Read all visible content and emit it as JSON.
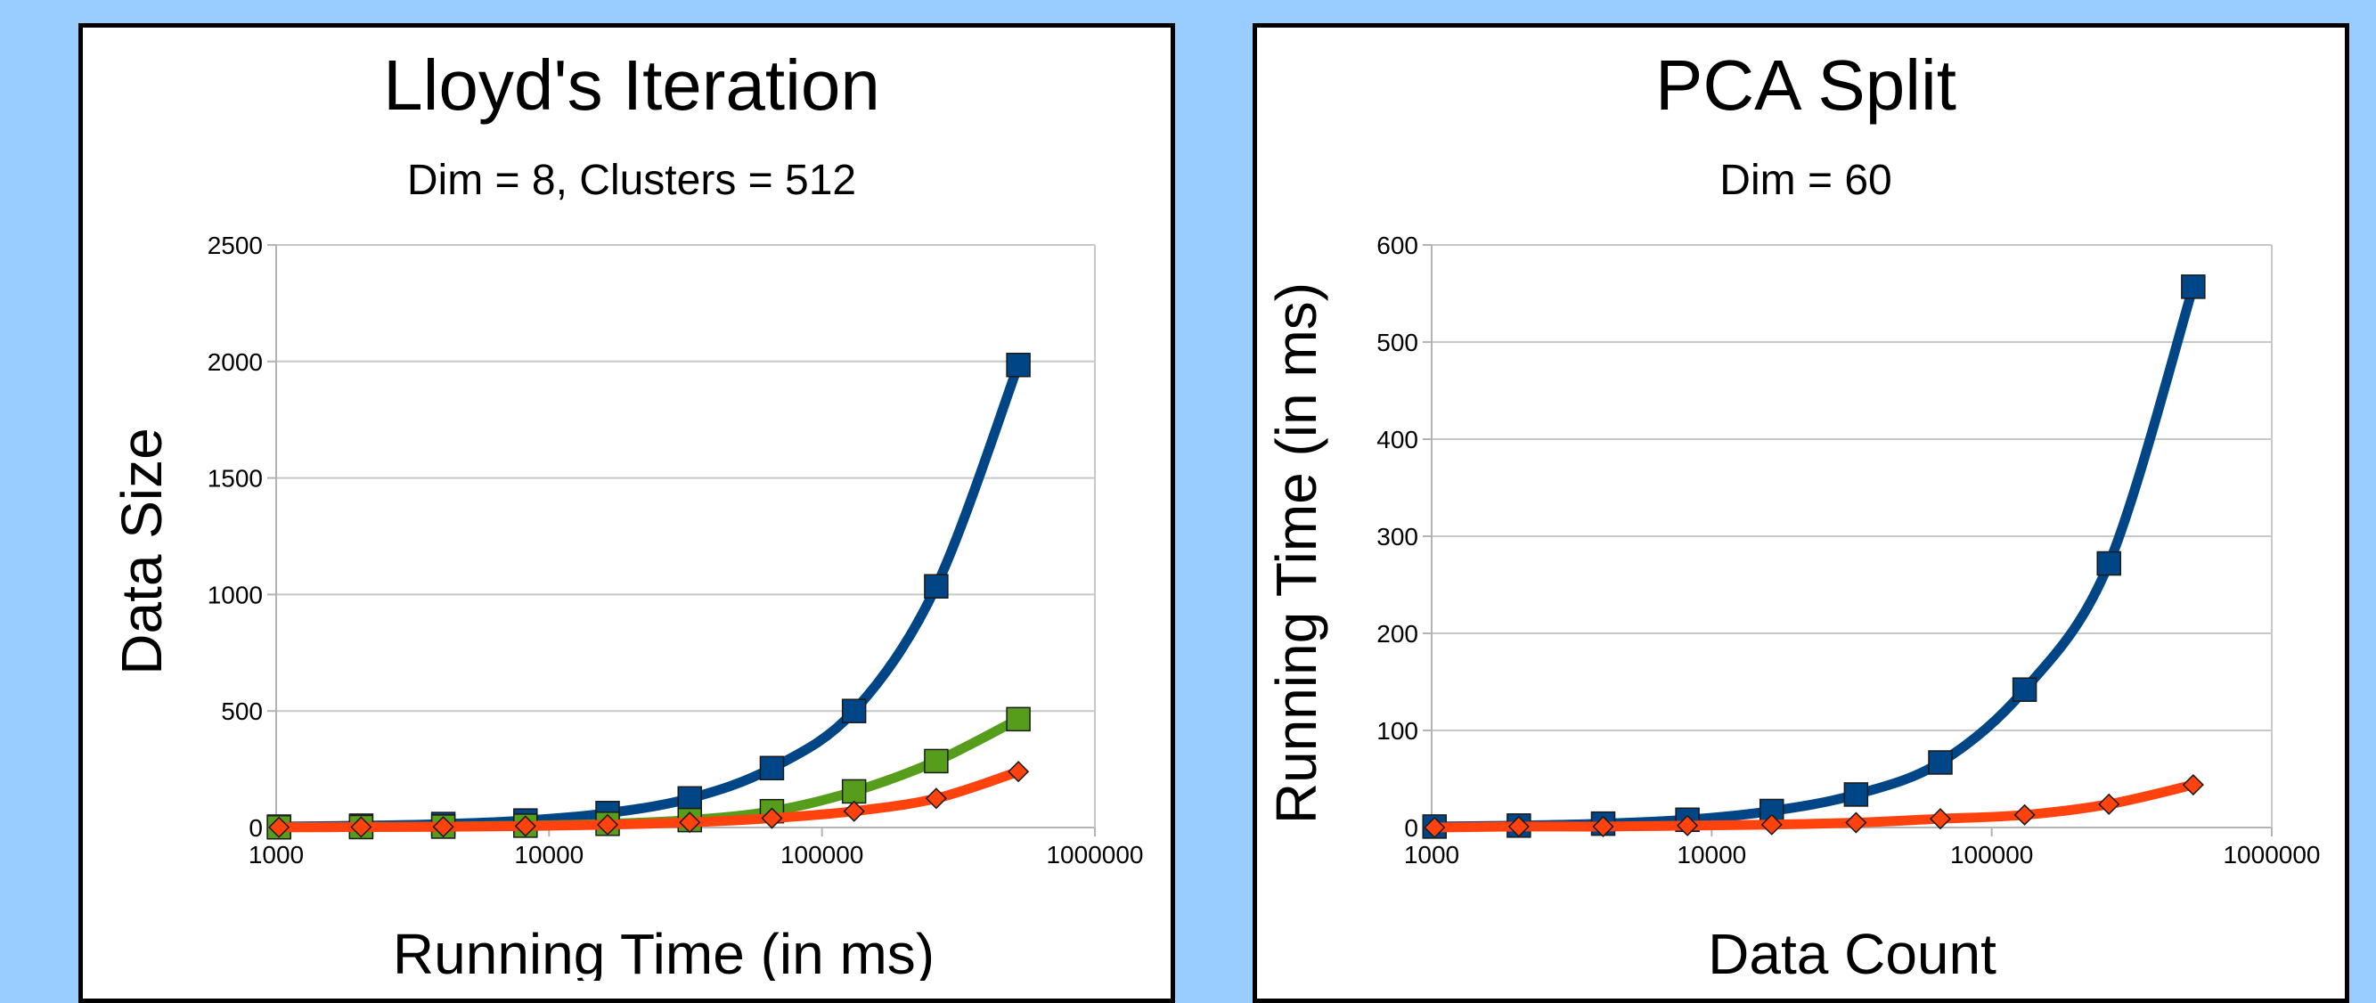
{
  "chart_data": [
    {
      "type": "line",
      "title": "Lloyd's Iteration",
      "subtitle": "Dim = 8, Clusters = 512",
      "xlabel": "Running Time (in ms)",
      "ylabel": "Data Size",
      "xscale": "log",
      "xlim": [
        1000,
        1000000
      ],
      "ylim": [
        0,
        2500
      ],
      "xticks": [
        "1000",
        "10000",
        "100000",
        "1000000"
      ],
      "yticks": [
        "0",
        "500",
        "1000",
        "1500",
        "2000",
        "2500"
      ],
      "grid": true,
      "x": [
        1024,
        2048,
        4096,
        8192,
        16384,
        32768,
        65536,
        131072,
        262144,
        524288
      ],
      "series": [
        {
          "color": "#004586",
          "marker": "square",
          "values": [
            4,
            8,
            15,
            30,
            62,
            125,
            255,
            500,
            1035,
            1985
          ]
        },
        {
          "color": "#579d1c",
          "marker": "square",
          "values": [
            1,
            2,
            4,
            8,
            16,
            32,
            70,
            155,
            285,
            465
          ]
        },
        {
          "color": "#ff420e",
          "marker": "diamond",
          "values": [
            1,
            2,
            3,
            6,
            12,
            22,
            40,
            70,
            125,
            240
          ]
        }
      ]
    },
    {
      "type": "line",
      "title": "PCA Split",
      "subtitle": "Dim = 60",
      "xlabel": "Data Count",
      "ylabel": "Running Time (in ms)",
      "xscale": "log",
      "xlim": [
        1000,
        1000000
      ],
      "ylim": [
        0,
        600
      ],
      "xticks": [
        "1000",
        "10000",
        "100000",
        "1000000"
      ],
      "yticks": [
        "0",
        "100",
        "200",
        "300",
        "400",
        "500",
        "600"
      ],
      "grid": true,
      "x": [
        1024,
        2048,
        4096,
        8192,
        16384,
        32768,
        65536,
        131072,
        262144,
        524288
      ],
      "series": [
        {
          "color": "#004586",
          "marker": "square",
          "values": [
            1,
            2,
            4,
            8,
            17,
            34,
            67,
            142,
            272,
            557
          ]
        },
        {
          "color": "#ff420e",
          "marker": "diamond",
          "values": [
            0,
            1,
            1,
            2,
            3,
            5,
            9,
            13,
            24,
            44
          ]
        }
      ]
    }
  ]
}
